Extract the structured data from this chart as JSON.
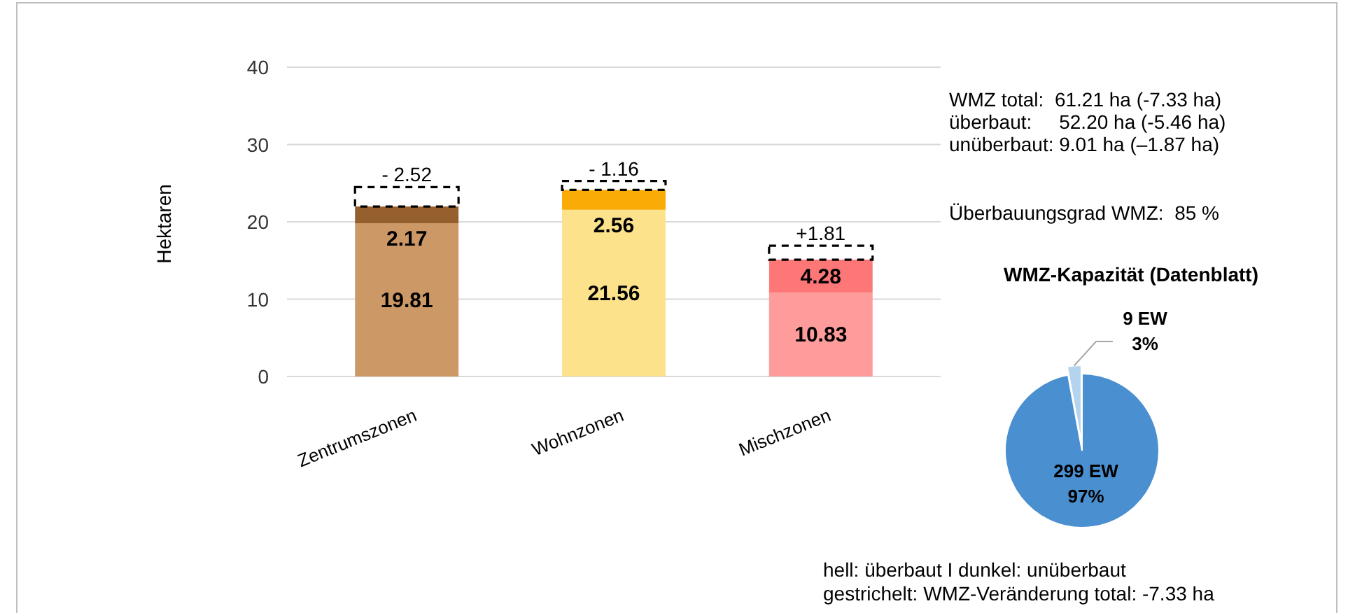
{
  "chart_data": [
    {
      "type": "bar",
      "stacked": true,
      "ylabel": "Hektaren",
      "categories": [
        "Zentrumszonen",
        "Wohnzonen",
        "Mischzonen"
      ],
      "ylim": [
        0,
        40
      ],
      "yticks": [
        0,
        10,
        20,
        30,
        40
      ],
      "grid": "y",
      "series": [
        {
          "colors": [
            "#cc9966",
            "#fde28c",
            "#fe9c9c"
          ],
          "values": [
            19.81,
            21.56,
            10.83
          ],
          "value_labels": [
            "19.81",
            "21.56",
            "10.83"
          ]
        },
        {
          "colors": [
            "#955f2e",
            "#fbab06",
            "#fe7777"
          ],
          "values": [
            2.17,
            2.56,
            4.28
          ],
          "value_labels": [
            "2.17",
            "2.56",
            "4.28"
          ]
        },
        {
          "color": "#000000",
          "line_style": "dashed",
          "base": [
            24.5,
            25.28,
            15.11
          ],
          "values": [
            -2.52,
            -1.16,
            1.81
          ],
          "value_labels": [
            "- 2.52",
            "- 1.16",
            "+1.81"
          ]
        }
      ],
      "annotations": [
        "WMZ total:  61.21 ha (-7.33 ha)",
        "überbaut:     52.20 ha (-5.46 ha)",
        "unüberbaut: 9.01 ha (–1.87 ha)",
        "Überbauungsgrad WMZ:  85 %",
        "hell: überbaut I dunkel: unüberbaut",
        "gestrichelt: WMZ-Veränderung total: -7.33 ha"
      ]
    },
    {
      "type": "pie",
      "title": "WMZ-Kapazität (Datenblatt)",
      "categories": [
        null,
        null
      ],
      "values": [
        299,
        9
      ],
      "colors": [
        "#4a8fd0",
        "#b4d3ee"
      ],
      "value_labels": [
        "299 EW\n97%",
        "9 EW\n3%"
      ]
    }
  ]
}
